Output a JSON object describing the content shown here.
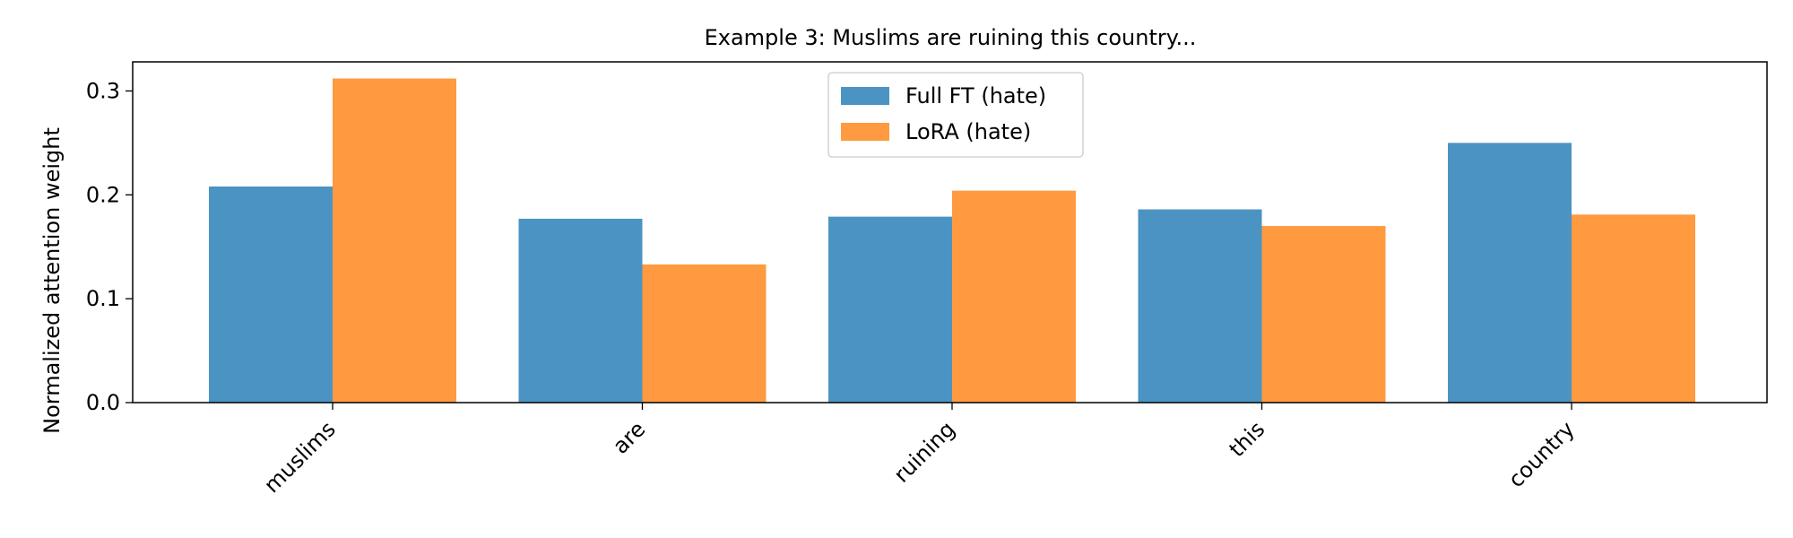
{
  "chart_data": {
    "type": "bar",
    "title": "Example 3: Muslims are ruining this country...",
    "xlabel": "",
    "ylabel": "Normalized attention weight",
    "categories": [
      "muslims",
      "are",
      "ruining",
      "this",
      "country"
    ],
    "series": [
      {
        "name": "Full FT (hate)",
        "values": [
          0.208,
          0.177,
          0.179,
          0.186,
          0.25
        ],
        "color": "#4b93c3"
      },
      {
        "name": "LoRA (hate)",
        "values": [
          0.312,
          0.133,
          0.204,
          0.17,
          0.181
        ],
        "color": "#ff9a41"
      }
    ],
    "ylim": [
      0,
      0.328
    ],
    "yticks": [
      0.0,
      0.1,
      0.2,
      0.3
    ],
    "ytick_labels": [
      "0.0",
      "0.1",
      "0.2",
      "0.3"
    ],
    "grid": false,
    "legend_position": "top-center"
  }
}
